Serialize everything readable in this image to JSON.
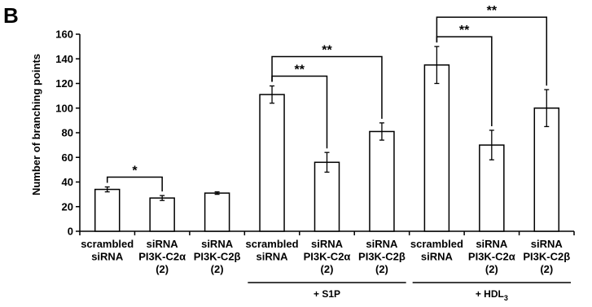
{
  "panel_label": "B",
  "chart_data": {
    "type": "bar",
    "title": "",
    "xlabel": "",
    "ylabel": "Number of branching points",
    "ylim": [
      0,
      160
    ],
    "yticks": [
      0,
      20,
      40,
      60,
      80,
      100,
      120,
      140,
      160
    ],
    "grid": false,
    "categories": [
      [
        "scrambled",
        "siRNA"
      ],
      [
        "siRNA",
        "PI3K-C2α",
        "(2)"
      ],
      [
        "siRNA",
        "PI3K-C2β",
        "(2)"
      ],
      [
        "scrambled",
        "siRNA"
      ],
      [
        "siRNA",
        "PI3K-C2α",
        "(2)"
      ],
      [
        "siRNA",
        "PI3K-C2β",
        "(2)"
      ],
      [
        "scrambled",
        "siRNA"
      ],
      [
        "siRNA",
        "PI3K-C2α",
        "(2)"
      ],
      [
        "siRNA",
        "PI3K-C2β",
        "(2)"
      ]
    ],
    "values": [
      34,
      27,
      31,
      111,
      56,
      81,
      135,
      70,
      100
    ],
    "errors": [
      2,
      2,
      1,
      7,
      8,
      7,
      15,
      12,
      15
    ],
    "groups": [
      {
        "label": "+ S1P",
        "label_sub": "",
        "start": 3,
        "end": 5
      },
      {
        "label": "+ HDL",
        "label_sub": "3",
        "start": 6,
        "end": 8
      }
    ],
    "significance": [
      {
        "from": 0,
        "to": 1,
        "label": "*"
      },
      {
        "from": 3,
        "to": 4,
        "label": "**"
      },
      {
        "from": 3,
        "to": 5,
        "label": "**"
      },
      {
        "from": 6,
        "to": 7,
        "label": "**"
      },
      {
        "from": 6,
        "to": 8,
        "label": "**"
      }
    ],
    "bar_fill": "#ffffff",
    "bar_stroke": "#000000"
  }
}
